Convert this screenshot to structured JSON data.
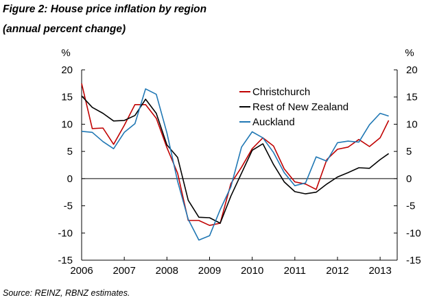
{
  "figure": {
    "title": "Figure 2: House price inflation by region",
    "subtitle": "(annual percent change)",
    "source": "Source: REINZ, RBNZ estimates."
  },
  "chart_data": {
    "type": "line",
    "ylabel_left": "%",
    "ylabel_right": "%",
    "ylim": [
      -15,
      20
    ],
    "yticks": [
      -15,
      -10,
      -5,
      0,
      5,
      10,
      15,
      20
    ],
    "xlim": [
      2006,
      2013.4
    ],
    "xticks": [
      2006,
      2007,
      2008,
      2009,
      2010,
      2011,
      2012,
      2013
    ],
    "grid": false,
    "zero_line": true,
    "legend_position": "top-right",
    "series": [
      {
        "name": "Christchurch",
        "color": "#c00000",
        "x": [
          2006.0,
          2006.25,
          2006.5,
          2006.75,
          2007.0,
          2007.25,
          2007.5,
          2007.75,
          2008.0,
          2008.25,
          2008.5,
          2008.75,
          2009.0,
          2009.25,
          2009.5,
          2009.75,
          2010.0,
          2010.25,
          2010.5,
          2010.75,
          2011.0,
          2011.25,
          2011.5,
          2011.75,
          2012.0,
          2012.25,
          2012.5,
          2012.75,
          2013.0,
          2013.2
        ],
        "values": [
          17.5,
          9.2,
          9.3,
          6.3,
          9.8,
          13.6,
          13.6,
          11.1,
          5.7,
          1.0,
          -7.7,
          -7.7,
          -8.6,
          -8.2,
          -0.9,
          2.1,
          5.5,
          7.5,
          6.0,
          1.8,
          -0.6,
          -1.0,
          -2.0,
          3.5,
          5.4,
          5.8,
          7.2,
          5.9,
          7.5,
          10.7
        ]
      },
      {
        "name": "Rest of New Zealand",
        "color": "#000000",
        "x": [
          2006.0,
          2006.25,
          2006.5,
          2006.75,
          2007.0,
          2007.25,
          2007.5,
          2007.75,
          2008.0,
          2008.25,
          2008.5,
          2008.75,
          2009.0,
          2009.25,
          2009.5,
          2009.75,
          2010.0,
          2010.25,
          2010.5,
          2010.75,
          2011.0,
          2011.25,
          2011.5,
          2011.75,
          2012.0,
          2012.25,
          2012.5,
          2012.75,
          2013.0,
          2013.2
        ],
        "values": [
          15.2,
          13.1,
          12.0,
          10.6,
          10.7,
          11.6,
          14.6,
          12.0,
          6.2,
          3.9,
          -4.0,
          -7.1,
          -7.2,
          -8.2,
          -3.2,
          1.0,
          5.2,
          6.4,
          2.6,
          -0.6,
          -2.4,
          -2.8,
          -2.5,
          -1.0,
          0.3,
          1.1,
          2.0,
          1.9,
          3.5,
          4.6
        ]
      },
      {
        "name": "Auckland",
        "color": "#1f77b4",
        "x": [
          2006.0,
          2006.25,
          2006.5,
          2006.75,
          2007.0,
          2007.25,
          2007.5,
          2007.75,
          2008.0,
          2008.25,
          2008.5,
          2008.75,
          2009.0,
          2009.25,
          2009.5,
          2009.75,
          2010.0,
          2010.25,
          2010.5,
          2010.75,
          2011.0,
          2011.25,
          2011.5,
          2011.75,
          2012.0,
          2012.25,
          2012.5,
          2012.75,
          2013.0,
          2013.2
        ],
        "values": [
          8.7,
          8.5,
          6.8,
          5.5,
          8.5,
          10.1,
          16.5,
          15.5,
          8.4,
          -0.5,
          -7.5,
          -11.3,
          -10.5,
          -5.7,
          -1.5,
          5.8,
          8.6,
          7.5,
          4.8,
          1.1,
          -1.3,
          -0.8,
          4.0,
          3.2,
          6.6,
          6.9,
          6.7,
          9.9,
          12.0,
          11.5
        ]
      }
    ]
  }
}
